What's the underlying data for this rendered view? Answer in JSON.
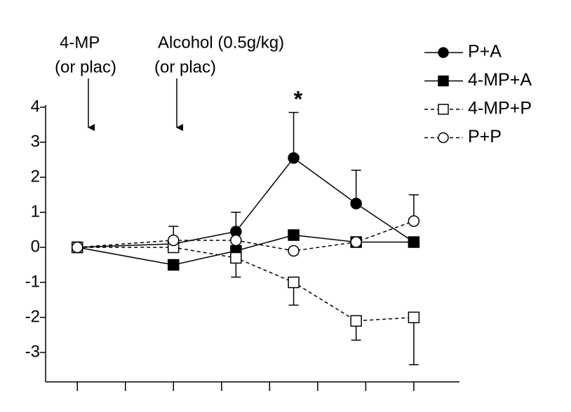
{
  "chart_data": {
    "type": "line",
    "annotations": [
      {
        "text": [
          "4-MP",
          "(or plac)"
        ]
      },
      {
        "text": [
          "Alcohol (0.5g/kg)",
          "(or plac)"
        ]
      },
      {
        "text": [
          "*"
        ]
      }
    ],
    "x": [
      0,
      2,
      3.3,
      4.5,
      5.8,
      7.0
    ],
    "xlim": [
      -0.66,
      7.95
    ],
    "xticks": [
      0,
      1,
      2,
      3,
      4,
      5,
      6,
      7
    ],
    "ylim": [
      -3.84,
      4.06
    ],
    "yticks": [
      -3,
      -2,
      -1,
      0,
      1,
      2,
      3,
      4
    ],
    "error_side": "one-sided",
    "series": [
      {
        "name": "P+A",
        "color": "#000000",
        "marker": "circle",
        "filled": true,
        "dashed": false,
        "error_direction": "up",
        "values": [
          0,
          0.1,
          0.45,
          2.55,
          1.25,
          0.15
        ],
        "errors": [
          null,
          null,
          0.55,
          1.3,
          0.95,
          null
        ]
      },
      {
        "name": "4-MP+A",
        "color": "#000000",
        "marker": "square",
        "filled": true,
        "dashed": false,
        "error_direction": "down",
        "values": [
          0,
          -0.5,
          -0.1,
          0.35,
          0.15,
          0.15
        ],
        "errors": [
          null,
          null,
          null,
          null,
          null,
          null
        ]
      },
      {
        "name": "4-MP+P",
        "color": "#000000",
        "marker": "square",
        "filled": false,
        "dashed": true,
        "error_direction": "down",
        "values": [
          0,
          0,
          -0.3,
          -1.0,
          -2.1,
          -2.0
        ],
        "errors": [
          null,
          null,
          0.55,
          0.65,
          0.55,
          1.35
        ]
      },
      {
        "name": "P+P",
        "color": "#000000",
        "marker": "circle",
        "filled": false,
        "dashed": true,
        "error_direction": "up",
        "values": [
          0,
          0.2,
          0.2,
          -0.1,
          0.15,
          0.75
        ],
        "errors": [
          null,
          0.4,
          null,
          null,
          null,
          0.75
        ]
      }
    ]
  }
}
